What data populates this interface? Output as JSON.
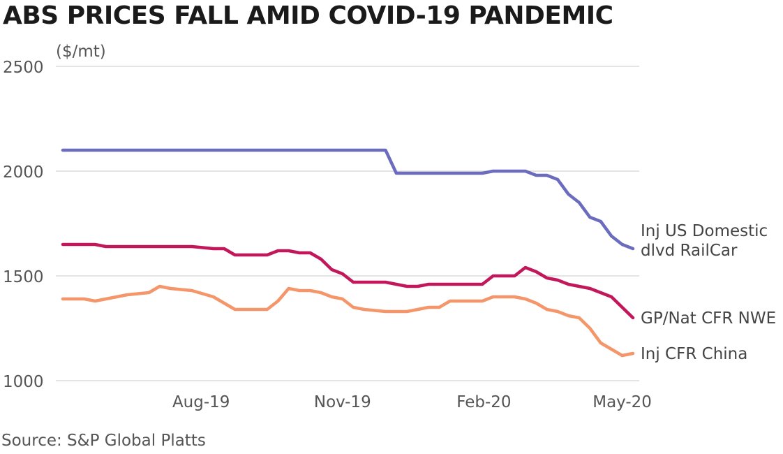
{
  "title": "ABS PRICES FALL AMID COVID-19 PANDEMIC",
  "source": "Source: S&P Global Platts",
  "chart_data": {
    "type": "line",
    "title": "ABS PRICES FALL AMID COVID-19 PANDEMIC",
    "unit": "($/mt)",
    "ylim": [
      1000,
      2500
    ],
    "yticks": [
      1000,
      1500,
      2000,
      2500
    ],
    "x_start": "2019-05-03",
    "x_end": "2020-05-08",
    "xticks": [
      {
        "label": "Aug-19",
        "date": "2019-08-01"
      },
      {
        "label": "Nov-19",
        "date": "2019-11-01"
      },
      {
        "label": "Feb-20",
        "date": "2020-02-01"
      },
      {
        "label": "May-20",
        "date": "2020-05-01"
      }
    ],
    "grid": true,
    "legend": "right",
    "x": [
      "2019-05-03",
      "2019-05-17",
      "2019-05-24",
      "2019-05-31",
      "2019-06-14",
      "2019-06-28",
      "2019-07-05",
      "2019-07-12",
      "2019-07-26",
      "2019-08-09",
      "2019-08-16",
      "2019-08-23",
      "2019-08-30",
      "2019-09-06",
      "2019-09-13",
      "2019-09-20",
      "2019-09-27",
      "2019-10-04",
      "2019-10-11",
      "2019-10-18",
      "2019-10-25",
      "2019-11-01",
      "2019-11-08",
      "2019-11-15",
      "2019-11-29",
      "2019-12-06",
      "2019-12-13",
      "2019-12-20",
      "2019-12-27",
      "2020-01-03",
      "2020-01-10",
      "2020-01-17",
      "2020-01-31",
      "2020-02-07",
      "2020-02-14",
      "2020-02-21",
      "2020-02-28",
      "2020-03-06",
      "2020-03-13",
      "2020-03-20",
      "2020-03-27",
      "2020-04-03",
      "2020-04-10",
      "2020-04-17",
      "2020-04-24",
      "2020-05-01",
      "2020-05-08"
    ],
    "series": [
      {
        "name": "Inj US Domestic dlvd RailCar",
        "color": "#6c6cbf",
        "values": [
          2100,
          2100,
          2100,
          2100,
          2100,
          2100,
          2100,
          2100,
          2100,
          2100,
          2100,
          2100,
          2100,
          2100,
          2100,
          2100,
          2100,
          2100,
          2100,
          2100,
          2100,
          2100,
          2100,
          2100,
          2100,
          1990,
          1990,
          1990,
          1990,
          1990,
          1990,
          1990,
          1990,
          2000,
          2000,
          2000,
          2000,
          1980,
          1980,
          1960,
          1890,
          1850,
          1780,
          1760,
          1690,
          1650,
          1630
        ]
      },
      {
        "name": "GP/Nat CFR NWE",
        "color": "#c2185b",
        "values": [
          1650,
          1650,
          1650,
          1640,
          1640,
          1640,
          1640,
          1640,
          1640,
          1630,
          1630,
          1600,
          1600,
          1600,
          1600,
          1620,
          1620,
          1610,
          1610,
          1580,
          1530,
          1510,
          1470,
          1470,
          1470,
          1460,
          1450,
          1450,
          1460,
          1460,
          1460,
          1460,
          1460,
          1500,
          1500,
          1500,
          1540,
          1520,
          1490,
          1480,
          1460,
          1450,
          1440,
          1420,
          1400,
          1350,
          1300
        ]
      },
      {
        "name": "Inj CFR China",
        "color": "#f4956a",
        "values": [
          1390,
          1390,
          1380,
          1390,
          1410,
          1420,
          1450,
          1440,
          1430,
          1400,
          1370,
          1340,
          1340,
          1340,
          1340,
          1380,
          1440,
          1430,
          1430,
          1420,
          1400,
          1390,
          1350,
          1340,
          1330,
          1330,
          1330,
          1340,
          1350,
          1350,
          1380,
          1380,
          1380,
          1400,
          1400,
          1400,
          1390,
          1370,
          1340,
          1330,
          1310,
          1300,
          1250,
          1180,
          1150,
          1120,
          1130
        ]
      }
    ]
  }
}
